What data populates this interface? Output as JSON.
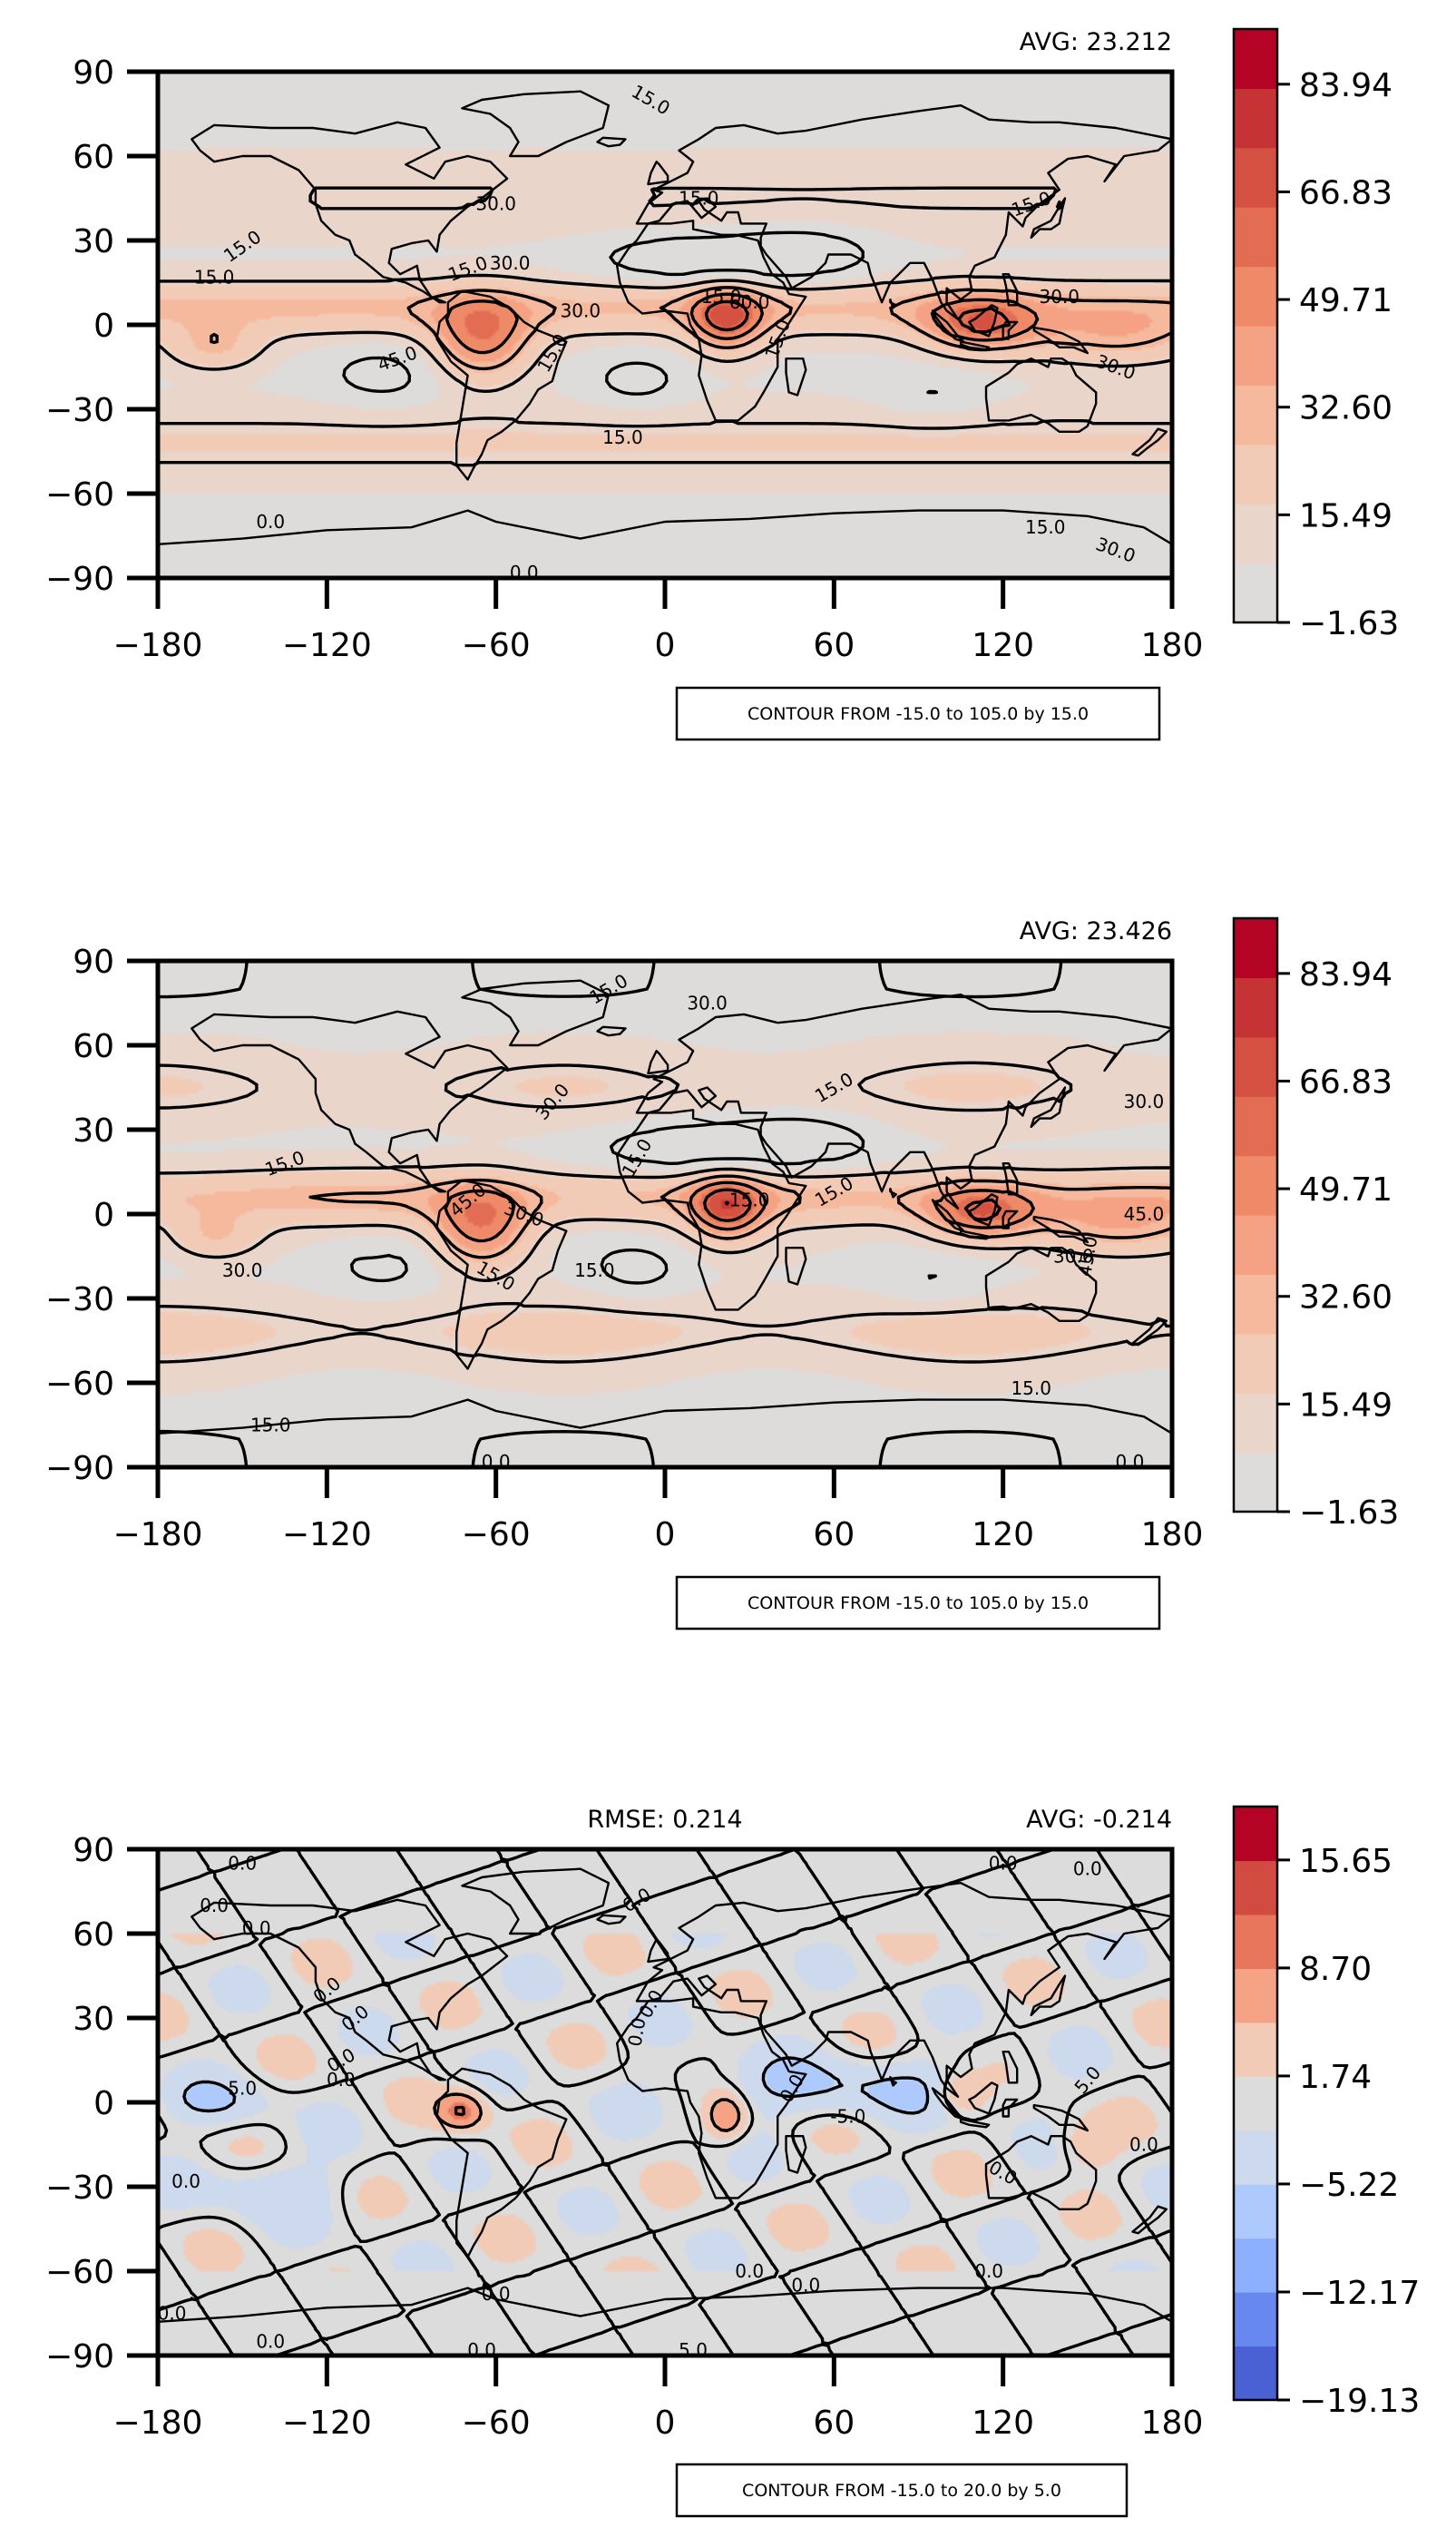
{
  "chart_data": [
    {
      "type": "heatmap",
      "title": "",
      "avg_label": "AVG: 23.212",
      "xlabel": "",
      "ylabel": "",
      "xlim": [
        -180,
        180
      ],
      "ylim": [
        -90,
        90
      ],
      "xticks": [
        "−180",
        "−120",
        "−60",
        "0",
        "60",
        "120",
        "180"
      ],
      "yticks": [
        "90",
        "60",
        "30",
        "0",
        "−30",
        "−60",
        "−90"
      ],
      "colorbar": {
        "range": [
          -1.63,
          92.5
        ],
        "ticks": [
          "83.94",
          "66.83",
          "49.71",
          "32.60",
          "15.49",
          "−1.63"
        ],
        "colors": [
          "#dedcdb",
          "#ead5ca",
          "#f2cbb7",
          "#f5b99d",
          "#f4a283",
          "#ee8a68",
          "#e26d52",
          "#d55142",
          "#c53334",
          "#b40426"
        ]
      },
      "contour_text": "CONTOUR FROM -15.0 to 105.0 by 15.0",
      "contour_labels": [
        "15.0",
        "30.0",
        "15.0",
        "30.0",
        "15.0",
        "15.0",
        "30.0",
        "15.0",
        "15.0",
        "30.0",
        "15.0",
        "15.0",
        "0.0",
        "0.0",
        "15.0",
        "30.0",
        "60.0",
        "45.0",
        "15.0",
        "15.0",
        "30.0"
      ]
    },
    {
      "type": "heatmap",
      "title": "",
      "avg_label": "AVG: 23.426",
      "xlabel": "",
      "ylabel": "",
      "xlim": [
        -180,
        180
      ],
      "ylim": [
        -90,
        90
      ],
      "xticks": [
        "−180",
        "−120",
        "−60",
        "0",
        "60",
        "120",
        "180"
      ],
      "yticks": [
        "90",
        "60",
        "30",
        "0",
        "−30",
        "−60",
        "−90"
      ],
      "colorbar": {
        "range": [
          -1.63,
          92.5
        ],
        "ticks": [
          "83.94",
          "66.83",
          "49.71",
          "32.60",
          "15.49",
          "−1.63"
        ],
        "colors": [
          "#dedcdb",
          "#ead5ca",
          "#f2cbb7",
          "#f5b99d",
          "#f4a283",
          "#ee8a68",
          "#e26d52",
          "#d55142",
          "#c53334",
          "#b40426"
        ]
      },
      "contour_text": "CONTOUR FROM -15.0 to 105.0 by 15.0",
      "contour_labels": [
        "15.0",
        "30.0",
        "30.0",
        "15.0",
        "15.0",
        "15.0",
        "30.0",
        "15.0",
        "30.0",
        "45.0",
        "15.0",
        "15.0",
        "30.0",
        "45.0",
        "30.0",
        "15.0",
        "15.0",
        "0.0",
        "0.0",
        "45.0",
        "15.0"
      ]
    },
    {
      "type": "heatmap",
      "title": "",
      "rmse_label": "RMSE: 0.214",
      "avg_label": "AVG: -0.214",
      "xlabel": "",
      "ylabel": "",
      "xlim": [
        -180,
        180
      ],
      "ylim": [
        -90,
        90
      ],
      "xticks": [
        "−180",
        "−120",
        "−60",
        "0",
        "60",
        "120",
        "180"
      ],
      "yticks": [
        "90",
        "60",
        "30",
        "0",
        "−30",
        "−60",
        "−90"
      ],
      "colorbar": {
        "range": [
          -19.13,
          19.13
        ],
        "ticks": [
          "15.65",
          "8.70",
          "1.74",
          "−5.22",
          "−12.17",
          "−19.13"
        ],
        "colors": [
          "#4961d2",
          "#6788ee",
          "#8caffe",
          "#aec9fc",
          "#cdd9ec",
          "#dcdcdc",
          "#f2cbb7",
          "#f6a385",
          "#e8765c",
          "#d24b40",
          "#b40426"
        ]
      },
      "contour_text": "CONTOUR FROM -15.0 to 20.0 by 5.0",
      "contour_labels": [
        "0.0",
        "0.0",
        "0.0",
        "0.0",
        "0.0",
        "0.0",
        "0.0",
        "0.0",
        "5.0",
        "0.0",
        "0.0",
        "0.0",
        "0.0",
        "0.0",
        "0.0",
        "0.0",
        "0.0",
        "0.0",
        "5.0",
        "-5.0",
        "0.0",
        "0.0",
        "0.0",
        "0.0",
        "0.0",
        "5.0",
        "0.0"
      ]
    }
  ]
}
